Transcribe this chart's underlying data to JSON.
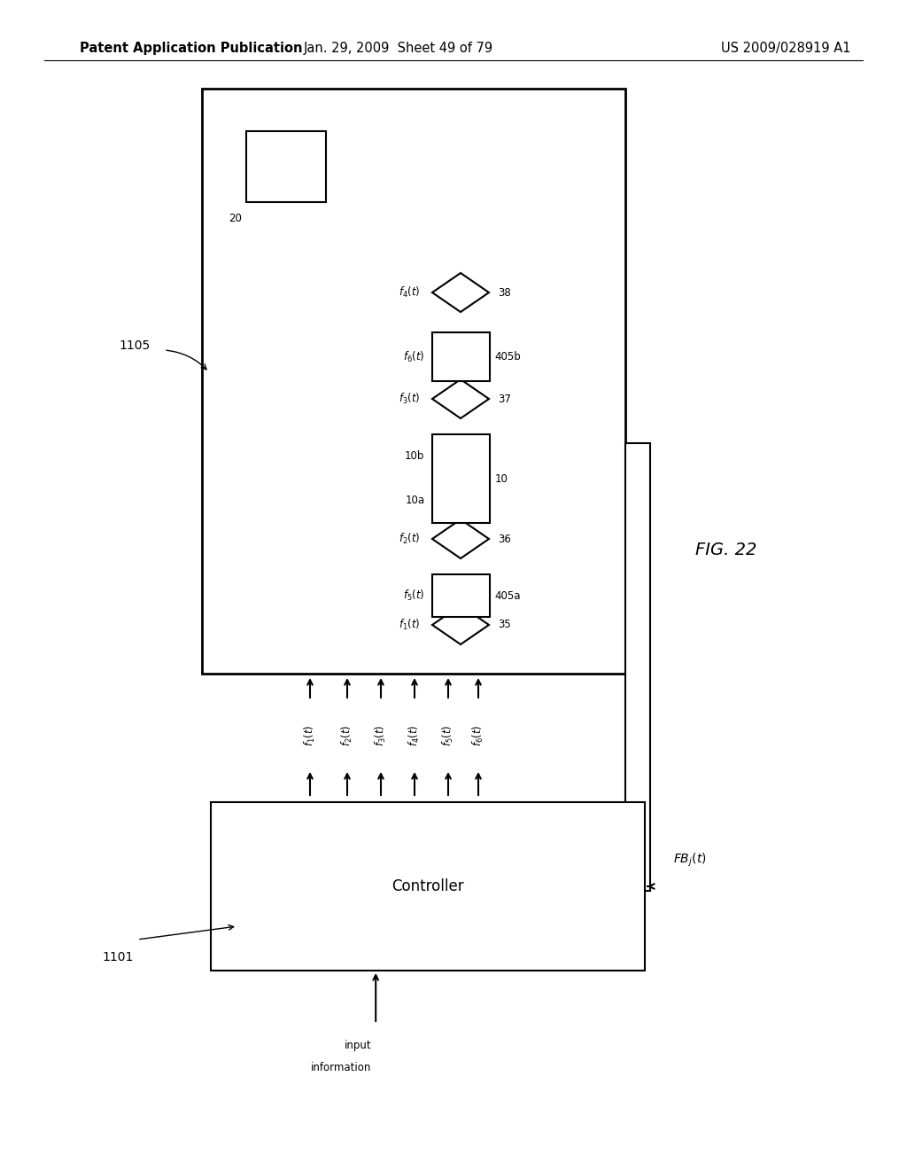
{
  "bg_color": "#ffffff",
  "header_left": "Patent Application Publication",
  "header_mid": "Jan. 29, 2009  Sheet 49 of 79",
  "header_right": "US 2009/028919 A1",
  "fig_label": "FIG. 22",
  "header_fontsize": 10.5,
  "body_fontsize": 10,
  "small_fontsize": 9,
  "label_fontsize": 8.5
}
